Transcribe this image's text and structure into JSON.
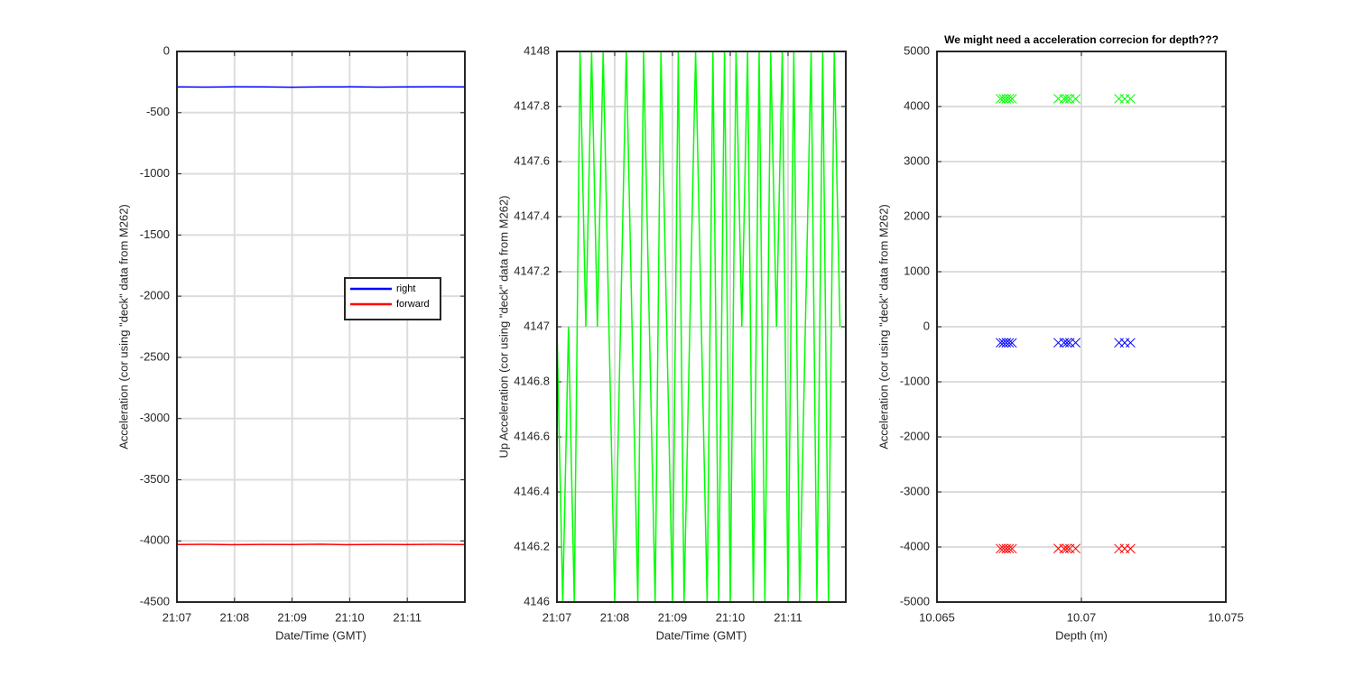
{
  "chart_data": [
    {
      "type": "line",
      "ylabel": "Acceleration (cor using \"deck\" data from M262)",
      "xlabel": "Date/Time (GMT)",
      "x": [
        1267,
        1267.5,
        1268,
        1268.5,
        1269,
        1269.5,
        1270,
        1270.5,
        1271,
        1271.5,
        1272
      ],
      "series": [
        {
          "name": "right",
          "color": "#0000ff",
          "values": [
            -290,
            -291,
            -289,
            -290,
            -292,
            -290,
            -289,
            -291,
            -290,
            -289,
            -290
          ]
        },
        {
          "name": "forward",
          "color": "#ff0000",
          "values": [
            -4030,
            -4028,
            -4031,
            -4029,
            -4030,
            -4027,
            -4031,
            -4029,
            -4030,
            -4028,
            -4030
          ]
        }
      ],
      "xlim": [
        1267,
        1272
      ],
      "xticks": [
        {
          "value": 1267,
          "label": "21:07"
        },
        {
          "value": 1268,
          "label": "21:08"
        },
        {
          "value": 1269,
          "label": "21:09"
        },
        {
          "value": 1270,
          "label": "21:10"
        },
        {
          "value": 1271,
          "label": "21:11"
        }
      ],
      "ylim": [
        -4500,
        0
      ],
      "yticks": [
        -4500,
        -4000,
        -3500,
        -3000,
        -2500,
        -2000,
        -1500,
        -1000,
        -500,
        0
      ],
      "grid": true,
      "legend": "east"
    },
    {
      "type": "line",
      "ylabel": "Up Acceleration (cor using \"deck\" data from M262)",
      "xlabel": "Date/Time (GMT)",
      "x": [
        1267,
        1267.1,
        1267.2,
        1267.3,
        1267.4,
        1267.5,
        1267.6,
        1267.7,
        1267.8,
        1267.9,
        1268,
        1268.1,
        1268.2,
        1268.3,
        1268.4,
        1268.5,
        1268.6,
        1268.7,
        1268.8,
        1268.9,
        1269,
        1269.1,
        1269.2,
        1269.3,
        1269.4,
        1269.5,
        1269.6,
        1269.7,
        1269.8,
        1269.9,
        1270,
        1270.1,
        1270.2,
        1270.3,
        1270.4,
        1270.5,
        1270.6,
        1270.7,
        1270.8,
        1270.9,
        1271,
        1271.1,
        1271.2,
        1271.3,
        1271.4,
        1271.5,
        1271.6,
        1271.7,
        1271.8,
        1271.9
      ],
      "series": [
        {
          "color": "#00ff00",
          "values": [
            4147,
            4146,
            4147,
            4146,
            4148,
            4147,
            4148,
            4147,
            4148,
            4147,
            4146,
            4147,
            4148,
            4147,
            4146,
            4148,
            4147,
            4146,
            4148,
            4147,
            4146,
            4148,
            4146,
            4147,
            4148,
            4147,
            4146,
            4148,
            4146,
            4148,
            4146,
            4148,
            4147,
            4148,
            4146,
            4148,
            4146,
            4148,
            4147,
            4148,
            4146,
            4148,
            4146,
            4147,
            4148,
            4146,
            4148,
            4146,
            4148,
            4147
          ]
        }
      ],
      "xlim": [
        1267,
        1272
      ],
      "xticks": [
        {
          "value": 1267,
          "label": "21:07"
        },
        {
          "value": 1268,
          "label": "21:08"
        },
        {
          "value": 1269,
          "label": "21:09"
        },
        {
          "value": 1270,
          "label": "21:10"
        },
        {
          "value": 1271,
          "label": "21:11"
        }
      ],
      "ylim": [
        4146,
        4148
      ],
      "yticks": [
        4146,
        4146.2,
        4146.4,
        4146.6,
        4146.8,
        4147,
        4147.2,
        4147.4,
        4147.6,
        4147.8,
        4148
      ],
      "grid": true
    },
    {
      "type": "scatter",
      "title": "We might need a acceleration correcion for depth???",
      "ylabel": "Acceleration (cor using \"deck\" data from M262)",
      "xlabel": "Depth (m)",
      "x": [
        10.0672,
        10.0673,
        10.0674,
        10.0675,
        10.0676,
        10.0692,
        10.0694,
        10.0695,
        10.0696,
        10.0698,
        10.0713,
        10.0715,
        10.0717
      ],
      "series": [
        {
          "color": "#00ff00",
          "values": [
            4140,
            4142,
            4139,
            4141,
            4140,
            4141,
            4140,
            4142,
            4139,
            4140,
            4141,
            4140,
            4139
          ]
        },
        {
          "color": "#0000ff",
          "values": [
            -290,
            -291,
            -289,
            -290,
            -292,
            -290,
            -289,
            -291,
            -290,
            -289,
            -290,
            -291,
            -290
          ]
        },
        {
          "color": "#ff0000",
          "values": [
            -4030,
            -4028,
            -4031,
            -4029,
            -4030,
            -4027,
            -4031,
            -4029,
            -4030,
            -4028,
            -4030,
            -4029,
            -4031
          ]
        }
      ],
      "xlim": [
        10.065,
        10.075
      ],
      "xticks": [
        10.065,
        10.07,
        10.075
      ],
      "ylim": [
        -5000,
        5000
      ],
      "yticks": [
        -5000,
        -4000,
        -3000,
        -2000,
        -1000,
        0,
        1000,
        2000,
        3000,
        4000,
        5000
      ],
      "grid": true
    }
  ]
}
